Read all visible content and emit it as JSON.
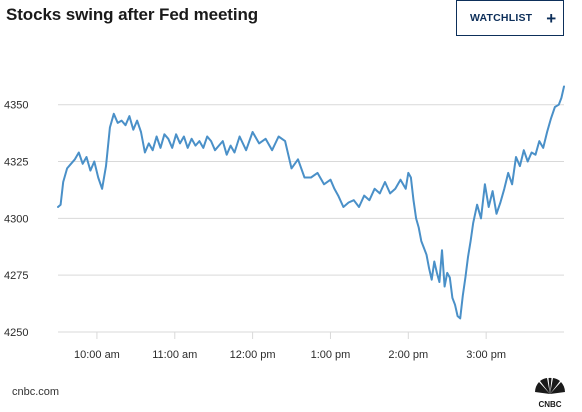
{
  "header": {
    "title": "Stocks swing after Fed meeting",
    "watchlist_label": "WATCHLIST"
  },
  "footer": {
    "source": "cnbc.com",
    "logo_text": "CNBC"
  },
  "colors": {
    "line": "#4a90c8",
    "grid": "#d9d9d9",
    "axis_text": "#2b2b2b",
    "button_border": "#0d2f5a"
  },
  "chart_data": {
    "type": "line",
    "title": "Stocks swing after Fed meeting",
    "xlabel": "",
    "ylabel": "",
    "ylim": [
      4250,
      4360
    ],
    "xlim": [
      "09:30",
      "16:00"
    ],
    "grid": true,
    "y_ticks": [
      4250,
      4275,
      4300,
      4325,
      4350
    ],
    "x_ticks": [
      {
        "time": "10:00",
        "label": "10:00 am"
      },
      {
        "time": "11:00",
        "label": "11:00 am"
      },
      {
        "time": "12:00",
        "label": "12:00 pm"
      },
      {
        "time": "13:00",
        "label": "1:00 pm"
      },
      {
        "time": "14:00",
        "label": "2:00 pm"
      },
      {
        "time": "15:00",
        "label": "3:00 pm"
      }
    ],
    "series": [
      {
        "x": [
          "09:30",
          "09:32",
          "09:34",
          "09:37",
          "09:40",
          "09:43",
          "09:46",
          "09:49",
          "09:52",
          "09:55",
          "09:58",
          "10:01",
          "10:04",
          "10:07",
          "10:10",
          "10:13",
          "10:16",
          "10:19",
          "10:22",
          "10:25",
          "10:28",
          "10:31",
          "10:34",
          "10:37",
          "10:40",
          "10:43",
          "10:46",
          "10:49",
          "10:52",
          "10:55",
          "10:58",
          "11:01",
          "11:04",
          "11:07",
          "11:10",
          "11:13",
          "11:16",
          "11:19",
          "11:22",
          "11:25",
          "11:28",
          "11:31",
          "11:34",
          "11:37",
          "11:40",
          "11:43",
          "11:46",
          "11:50",
          "11:55",
          "12:00",
          "12:05",
          "12:10",
          "12:15",
          "12:20",
          "12:25",
          "12:30",
          "12:35",
          "12:40",
          "12:45",
          "12:50",
          "12:55",
          "13:00",
          "13:03",
          "13:06",
          "13:10",
          "13:14",
          "13:18",
          "13:22",
          "13:26",
          "13:30",
          "13:34",
          "13:38",
          "13:42",
          "13:46",
          "13:50",
          "13:54",
          "13:58",
          "14:00",
          "14:02",
          "14:04",
          "14:06",
          "14:08",
          "14:10",
          "14:12",
          "14:14",
          "14:16",
          "14:18",
          "14:20",
          "14:22",
          "14:24",
          "14:26",
          "14:28",
          "14:30",
          "14:32",
          "14:34",
          "14:36",
          "14:38",
          "14:40",
          "14:42",
          "14:44",
          "14:46",
          "14:48",
          "14:50",
          "14:53",
          "14:56",
          "14:59",
          "15:02",
          "15:05",
          "15:08",
          "15:11",
          "15:14",
          "15:17",
          "15:20",
          "15:23",
          "15:26",
          "15:29",
          "15:32",
          "15:35",
          "15:38",
          "15:41",
          "15:44",
          "15:47",
          "15:50",
          "15:53",
          "15:56",
          "15:58",
          "16:00"
        ],
        "y": [
          4305,
          4306,
          4316,
          4322,
          4324,
          4326,
          4329,
          4324,
          4327,
          4321,
          4325,
          4318,
          4313,
          4323,
          4340,
          4346,
          4342,
          4343,
          4341,
          4345,
          4339,
          4343,
          4338,
          4329,
          4333,
          4330,
          4336,
          4331,
          4337,
          4335,
          4331,
          4337,
          4333,
          4336,
          4331,
          4335,
          4332,
          4334,
          4331,
          4336,
          4334,
          4330,
          4332,
          4334,
          4328,
          4332,
          4329,
          4336,
          4330,
          4338,
          4333,
          4335,
          4330,
          4336,
          4334,
          4322,
          4326,
          4318,
          4318,
          4320,
          4315,
          4317,
          4313,
          4310,
          4305,
          4307,
          4308,
          4305,
          4310,
          4308,
          4313,
          4311,
          4316,
          4311,
          4313,
          4317,
          4313,
          4320,
          4318,
          4308,
          4300,
          4296,
          4290,
          4287,
          4284,
          4278,
          4273,
          4281,
          4276,
          4272,
          4286,
          4270,
          4276,
          4274,
          4265,
          4262,
          4257,
          4256,
          4266,
          4274,
          4283,
          4290,
          4298,
          4306,
          4300,
          4315,
          4305,
          4312,
          4302,
          4307,
          4313,
          4320,
          4315,
          4327,
          4323,
          4330,
          4325,
          4329,
          4328,
          4334,
          4331,
          4338,
          4344,
          4349,
          4350,
          4353,
          4358
        ]
      }
    ]
  }
}
